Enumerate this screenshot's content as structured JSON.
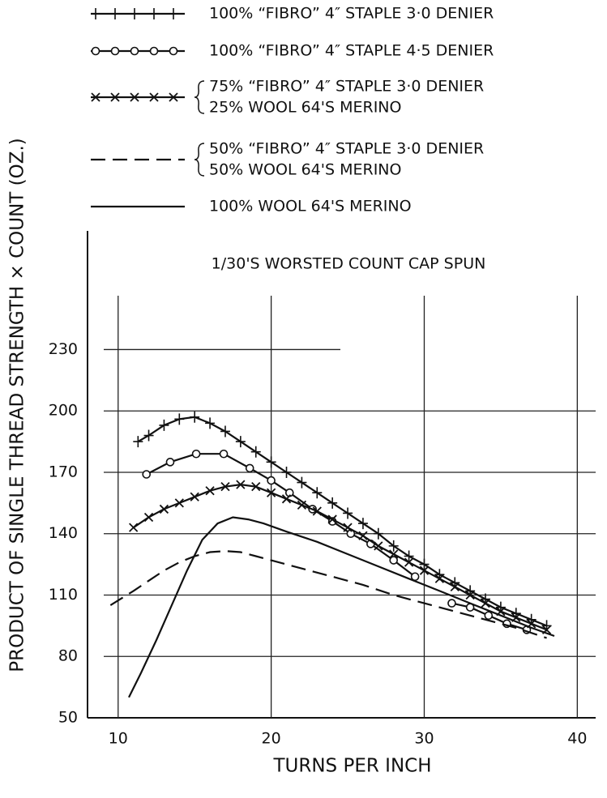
{
  "chart_data": {
    "type": "line",
    "subtitle": "1/30'S WORSTED COUNT CAP SPUN",
    "x_label": "TURNS PER INCH",
    "y_label": "PRODUCT OF SINGLE THREAD STRENGTH × COUNT (OZ.)",
    "xlim": [
      8,
      41.2
    ],
    "ylim": [
      50,
      288
    ],
    "xticks": [
      10,
      20,
      30,
      40
    ],
    "yticks": [
      50,
      80,
      110,
      140,
      170,
      200,
      230
    ],
    "grid": true,
    "series": [
      {
        "name": [
          "100% “FIBRO” 4″ STAPLE 3·0 DENIER"
        ],
        "color": "#111",
        "marker": "plus",
        "dashed": false,
        "x": [
          11.3,
          12,
          13,
          14,
          15,
          16,
          17,
          18,
          19,
          20,
          21,
          22,
          23,
          24,
          25,
          26,
          27,
          28,
          29,
          30,
          31,
          32,
          33,
          34,
          35,
          36,
          37,
          38
        ],
        "values": [
          185,
          188,
          193,
          196,
          197,
          194,
          190,
          185,
          180,
          175,
          170,
          165,
          160,
          155,
          150,
          145,
          140,
          134,
          129,
          125,
          120,
          116,
          112,
          108,
          104,
          101,
          98,
          95
        ]
      },
      {
        "name": [
          "100% “FIBRO” 4″ STAPLE 4·5 DENIER"
        ],
        "color": "#111",
        "marker": "circle",
        "dashed": false,
        "x": [
          11.85,
          13.4,
          15.1,
          16.9,
          18.6,
          20,
          21.2,
          22.7,
          24,
          25.2,
          26.5,
          28,
          29.4,
          null,
          31.8,
          33,
          34.2,
          35.4,
          36.7
        ],
        "values": [
          169,
          175,
          179,
          179,
          172,
          166,
          160,
          152,
          146,
          140,
          135,
          127,
          119,
          null,
          106,
          104,
          100,
          96,
          93
        ]
      },
      {
        "name": [
          "75% “FIBRO” 4″ STAPLE 3·0 DENIER",
          "25% WOOL 64'S MERINO"
        ],
        "color": "#111",
        "marker": "x",
        "dashed": false,
        "x": [
          11,
          12,
          13,
          14,
          15,
          16,
          17,
          18,
          19,
          20,
          21,
          22,
          23,
          24,
          25,
          26,
          27,
          28,
          29,
          30,
          31,
          32,
          33,
          34,
          35,
          36,
          37,
          38
        ],
        "values": [
          143,
          148,
          152,
          155,
          158,
          161,
          163,
          164,
          163,
          160,
          157,
          154,
          151,
          147,
          143,
          139,
          134,
          130,
          126,
          122,
          118,
          114,
          110,
          106,
          102,
          99,
          96,
          93
        ]
      },
      {
        "name": [
          "50% “FIBRO” 4″ STAPLE 3·0 DENIER",
          "50% WOOL 64'S MERINO"
        ],
        "color": "#111",
        "marker": "none",
        "dashed": true,
        "x": [
          9.5,
          11,
          12,
          13,
          14,
          15,
          16,
          17,
          18,
          19,
          20,
          22,
          24,
          26,
          28,
          30,
          32,
          34,
          36,
          38
        ],
        "values": [
          105,
          112,
          117,
          122,
          126,
          129,
          131,
          131.5,
          131,
          129,
          127,
          123,
          119,
          115,
          110,
          106,
          102,
          98,
          94,
          89
        ]
      },
      {
        "name": [
          "100% WOOL 64'S MERINO"
        ],
        "color": "#111",
        "marker": "none",
        "dashed": false,
        "x": [
          10.7,
          11.5,
          12.5,
          13.5,
          14.5,
          15.5,
          16.5,
          17.5,
          18.5,
          19.5,
          21,
          23,
          25,
          27,
          29,
          31,
          33,
          35,
          37,
          38.5
        ],
        "values": [
          60,
          72,
          88,
          105,
          122,
          137,
          145,
          148,
          147,
          145,
          141,
          136,
          130,
          124,
          118,
          112,
          106,
          100,
          94,
          90
        ]
      }
    ]
  }
}
